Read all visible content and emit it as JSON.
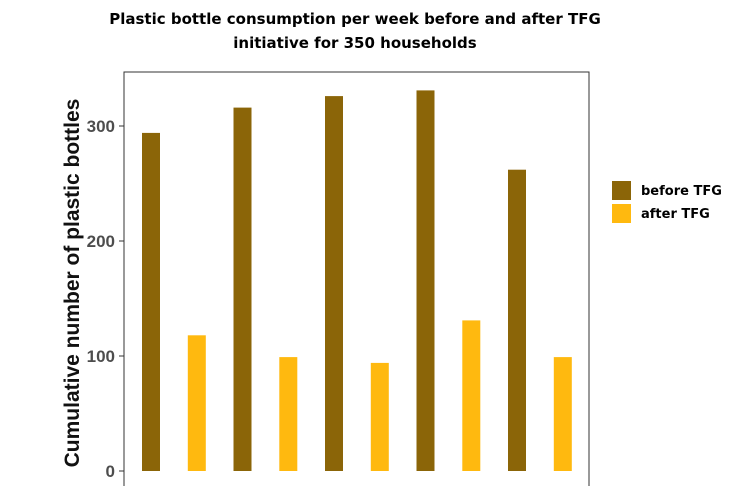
{
  "chart_data": {
    "type": "bar",
    "title": "Plastic bottle consumption per week before and after TFG initiative for 350 households",
    "title_lines": [
      "Plastic bottle consumption per week before and after TFG",
      "initiative for 350 households"
    ],
    "xlabel": "",
    "ylabel": "Cumulative number of plastic bottles",
    "ylim": [
      0,
      345
    ],
    "yticks": [
      "0",
      "100",
      "200",
      "300"
    ],
    "grid": false,
    "legend_position": "right",
    "group_count": 5,
    "series": [
      {
        "name": "before TFG",
        "color": "#8b6508",
        "values": [
          294,
          316,
          326,
          331,
          262
        ]
      },
      {
        "name": "after TFG",
        "color": "#ffb90f",
        "values": [
          118,
          99,
          94,
          131,
          99
        ]
      }
    ]
  }
}
